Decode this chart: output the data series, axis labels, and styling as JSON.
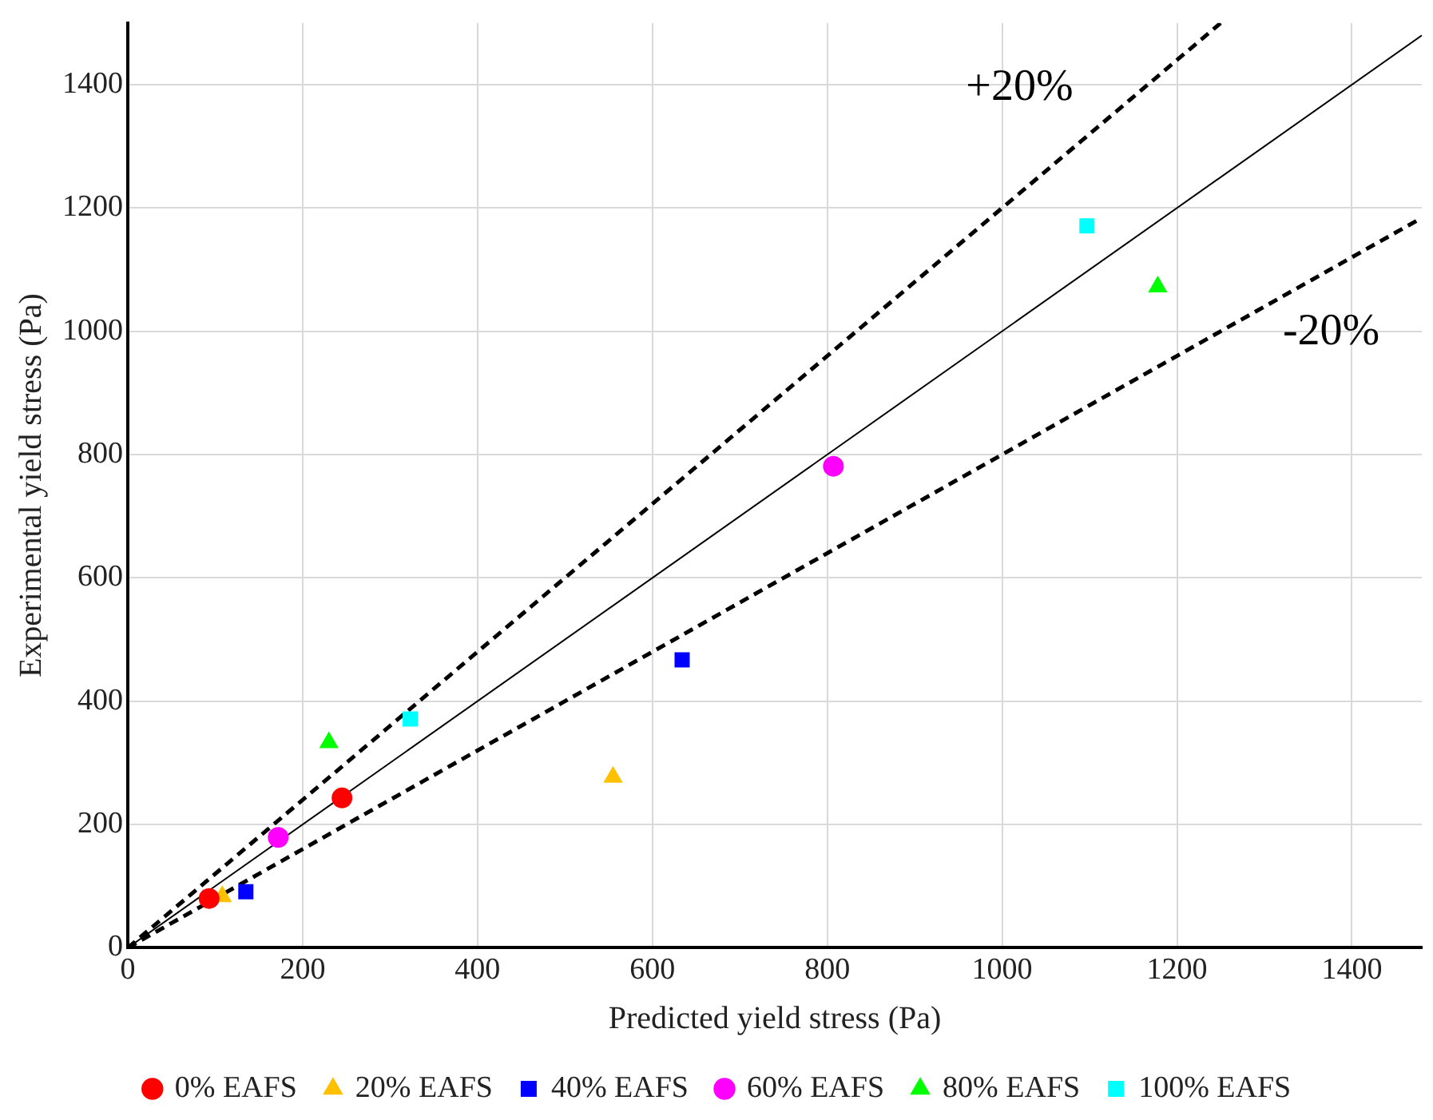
{
  "chart_data": {
    "type": "scatter",
    "xlabel": "Predicted yield stress (Pa)",
    "ylabel": "Experimental yield stress (Pa)",
    "xlim": [
      0,
      1480
    ],
    "ylim": [
      0,
      1500
    ],
    "xticks": [
      0,
      200,
      400,
      600,
      800,
      1000,
      1200,
      1400
    ],
    "yticks": [
      0,
      200,
      400,
      600,
      800,
      1000,
      1200,
      1400
    ],
    "grid": true,
    "legend": "bottom",
    "series": [
      {
        "name": "0% EAFS",
        "color": "#ff0000",
        "marker": "circle",
        "x": [
          93,
          245
        ],
        "values": [
          80,
          243
        ]
      },
      {
        "name": "20% EAFS",
        "color": "#ffc000",
        "marker": "triangle",
        "x": [
          108,
          555
        ],
        "values": [
          83,
          277
        ]
      },
      {
        "name": "40% EAFS",
        "color": "#0000ff",
        "marker": "square",
        "x": [
          135,
          634
        ],
        "values": [
          91,
          467
        ]
      },
      {
        "name": "60% EAFS",
        "color": "#ff00ff",
        "marker": "circle",
        "x": [
          172,
          807
        ],
        "values": [
          179,
          781
        ]
      },
      {
        "name": "80% EAFS",
        "color": "#00ff00",
        "marker": "triangle",
        "x": [
          230,
          1178
        ],
        "values": [
          333,
          1072
        ]
      },
      {
        "name": "100% EAFS",
        "color": "#00ffff",
        "marker": "square",
        "x": [
          323,
          1097
        ],
        "values": [
          371,
          1171
        ]
      },
      {
        "type": "line",
        "color": "#000000",
        "line_style": "solid",
        "marker": "none",
        "x": [
          0,
          1480
        ],
        "values": [
          0,
          1480
        ]
      },
      {
        "type": "line",
        "name": "+20%",
        "color": "#000000",
        "line_style": "dashed",
        "marker": "none",
        "x": [
          0,
          1250
        ],
        "values": [
          0,
          1500
        ]
      },
      {
        "type": "line",
        "name": "-20%",
        "color": "#000000",
        "line_style": "dashed",
        "marker": "none",
        "x": [
          0,
          1480
        ],
        "values": [
          0,
          1184
        ]
      }
    ]
  }
}
